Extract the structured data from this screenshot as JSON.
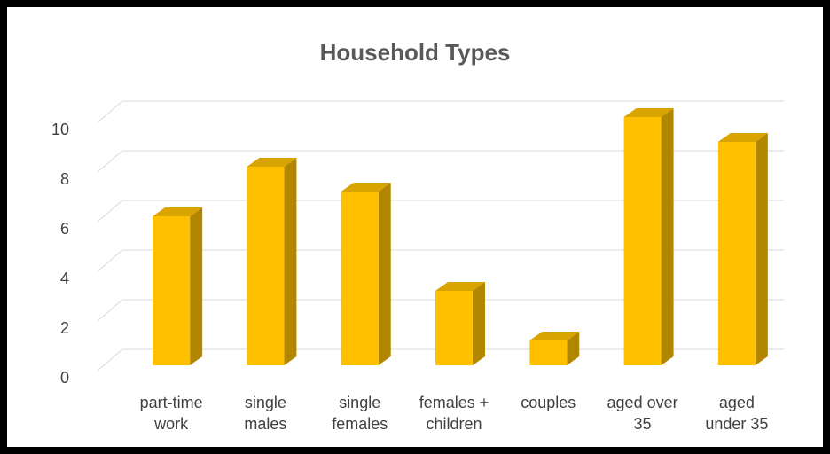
{
  "chart_data": {
    "type": "bar",
    "title": "Household Types",
    "categories": [
      [
        "part-time",
        "work"
      ],
      [
        "single",
        "males"
      ],
      [
        "single",
        "females"
      ],
      [
        "females +",
        "children"
      ],
      [
        "couples"
      ],
      [
        "aged over",
        "35"
      ],
      [
        "aged",
        "under 35"
      ]
    ],
    "values": [
      6,
      8,
      7,
      3,
      1,
      10,
      9
    ],
    "ylim": [
      0,
      10
    ],
    "yticks": [
      0,
      2,
      4,
      6,
      8,
      10
    ],
    "xlabel": "",
    "ylabel": "",
    "grid": true,
    "legend": "none",
    "three_d": true,
    "colors": {
      "bar_front": "#FFC000",
      "bar_side": "#B38600",
      "bar_top": "#D9A300",
      "grid": "#D9D9D9"
    }
  }
}
